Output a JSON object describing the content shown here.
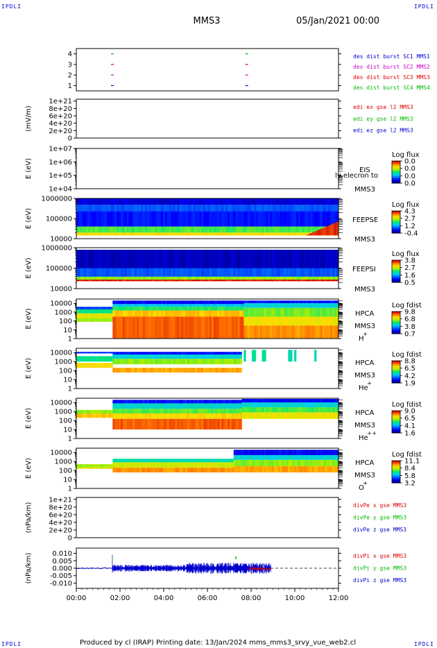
{
  "header": {
    "spacecraft": "MMS3",
    "date": "05/Jan/2021 00:00",
    "corner": "IPDLI"
  },
  "footer": {
    "text": "Produced by cl (IRAP)   Printing date: 13/Jan/2024   mms_mms3_srvy_vue_web2.cl"
  },
  "colors": {
    "red": "#dd0000",
    "green": "#00bb00",
    "blue": "#0000cc",
    "magenta": "#cc00cc",
    "black": "#000000"
  },
  "chart_data": {
    "type": "multi-panel time series",
    "x_tick_labels": [
      "00:00",
      "02:00",
      "04:00",
      "06:00",
      "08:00",
      "10:00",
      "12:00"
    ],
    "x_range_hours": [
      0,
      12
    ],
    "panels": [
      {
        "id": "burst",
        "type": "line",
        "ylabel": "",
        "tick_labels": [
          "4",
          "3",
          "2",
          "1"
        ],
        "tick_values": [
          4,
          3,
          2,
          1
        ],
        "ylim": [
          0.5,
          4.5
        ],
        "legend": [
          {
            "label": "des dist burst SC1 MMS1",
            "color": "#0000cc"
          },
          {
            "label": "des dist burst SC2 MMS2",
            "color": "#cc00cc"
          },
          {
            "label": "des dist burst SC3 MMS3",
            "color": "#dd0000"
          },
          {
            "label": "des dist burst SC4 MMS4",
            "color": "#00bb00"
          }
        ],
        "markers": [
          {
            "t": 1.65,
            "level": 4,
            "color": "#00bb00"
          },
          {
            "t": 1.65,
            "level": 3,
            "color": "#dd0000"
          },
          {
            "t": 1.65,
            "level": 2,
            "color": "#cc00cc"
          },
          {
            "t": 1.65,
            "level": 1,
            "color": "#0000cc"
          },
          {
            "t": 7.8,
            "level": 4,
            "color": "#00bb00"
          },
          {
            "t": 7.8,
            "level": 3,
            "color": "#dd0000"
          },
          {
            "t": 7.8,
            "level": 2,
            "color": "#cc00cc"
          },
          {
            "t": 7.8,
            "level": 1,
            "color": "#0000cc"
          }
        ]
      },
      {
        "id": "edi",
        "type": "line",
        "ylabel": "(mV/m)",
        "tick_labels": [
          "1e+21",
          "8e+20",
          "6e+20",
          "4e+20",
          "2e+20",
          "0"
        ],
        "tick_values": [
          1e+21,
          8e+20,
          6e+20,
          4e+20,
          2e+20,
          0
        ],
        "ylim": [
          0,
          1.05e+21
        ],
        "zero_line": true,
        "legend": [
          {
            "label": "edi ex gse l2 MMS3",
            "color": "#dd0000"
          },
          {
            "label": "edi ey gse l2 MMS3",
            "color": "#00bb00"
          },
          {
            "label": "edi ez gse l2 MMS3",
            "color": "#0000cc"
          }
        ]
      },
      {
        "id": "eis",
        "type": "heatmap",
        "ylabel": "E (eV)",
        "log": true,
        "tick_labels": [
          "1e+07",
          "1e+06",
          "1e+05",
          "1e+04"
        ],
        "tick_values": [
          10000000.0,
          1000000.0,
          100000.0,
          10000.0
        ],
        "ylim": [
          10000.0,
          10000000.0
        ],
        "labels": [
          "EIS",
          "MMS3"
        ],
        "overlay_text": "ly elecron to",
        "colorbar": {
          "title": "Log flux",
          "ticks": [
            "0.0",
            "0.0",
            "0.0",
            "0.0"
          ]
        }
      },
      {
        "id": "feepse",
        "type": "heatmap",
        "ylabel": "E (eV)",
        "log": true,
        "tick_labels": [
          "1000000",
          "100000",
          "10000"
        ],
        "tick_values": [
          1000000.0,
          100000.0,
          10000.0
        ],
        "ylim": [
          10000.0,
          1000000.0
        ],
        "labels": [
          "FEEPSE",
          "MMS3"
        ],
        "colorbar": {
          "title": "Log flux",
          "ticks": [
            "4.3",
            "2.7",
            "1.2",
            "-0.4"
          ]
        }
      },
      {
        "id": "feepsi",
        "type": "heatmap",
        "ylabel": "E (eV)",
        "log": true,
        "tick_labels": [
          "1000000",
          "100000",
          "10000"
        ],
        "tick_values": [
          1000000.0,
          100000.0,
          10000.0
        ],
        "ylim": [
          10000.0,
          1000000.0
        ],
        "labels": [
          "FEEPSI",
          "MMS3"
        ],
        "colorbar": {
          "title": "Log flux",
          "ticks": [
            "3.8",
            "2.7",
            "1.6",
            "0.5"
          ]
        }
      },
      {
        "id": "hpca_h",
        "type": "heatmap",
        "ylabel": "E (eV)",
        "log": true,
        "tick_labels": [
          "10000",
          "1000",
          "100",
          "10",
          "1"
        ],
        "tick_values": [
          10000.0,
          1000.0,
          100.0,
          10,
          1
        ],
        "ylim": [
          1,
          30000.0
        ],
        "labels": [
          "HPCA",
          "MMS3",
          "H",
          "+"
        ],
        "colorbar": {
          "title": "Log fdist",
          "ticks": [
            "9.8",
            "6.8",
            "3.8",
            "0.7"
          ]
        }
      },
      {
        "id": "hpca_he",
        "type": "heatmap",
        "ylabel": "E (eV)",
        "log": true,
        "tick_labels": [
          "10000",
          "1000",
          "100",
          "10",
          "1"
        ],
        "tick_values": [
          10000.0,
          1000.0,
          100.0,
          10,
          1
        ],
        "ylim": [
          1,
          30000.0
        ],
        "labels": [
          "HPCA",
          "MMS3",
          "He",
          "+"
        ],
        "colorbar": {
          "title": "Log fdist",
          "ticks": [
            "8.8",
            "6.5",
            "4.2",
            "1.9"
          ]
        }
      },
      {
        "id": "hpca_hepp",
        "type": "heatmap",
        "ylabel": "E (eV)",
        "log": true,
        "tick_labels": [
          "10000",
          "1000",
          "100",
          "10",
          "1"
        ],
        "tick_values": [
          10000.0,
          1000.0,
          100.0,
          10,
          1
        ],
        "ylim": [
          1,
          30000.0
        ],
        "labels": [
          "HPCA",
          "MMS3",
          "He",
          "++"
        ],
        "colorbar": {
          "title": "Log fdist",
          "ticks": [
            "9.0",
            "6.5",
            "4.1",
            "1.6"
          ]
        }
      },
      {
        "id": "hpca_o",
        "type": "heatmap",
        "ylabel": "E (eV)",
        "log": true,
        "tick_labels": [
          "10000",
          "1000",
          "100",
          "10",
          "1"
        ],
        "tick_values": [
          10000.0,
          1000.0,
          100.0,
          10,
          1
        ],
        "ylim": [
          1,
          30000.0
        ],
        "labels": [
          "HPCA",
          "MMS3",
          "O",
          "+"
        ],
        "colorbar": {
          "title": "Log fdist",
          "ticks": [
            "11.1",
            "8.4",
            "5.8",
            "3.2"
          ]
        }
      },
      {
        "id": "divpe",
        "type": "line",
        "ylabel": "(nPa/km)",
        "tick_labels": [
          "1e+21",
          "8e+20",
          "6e+20",
          "4e+20",
          "2e+20",
          "0"
        ],
        "tick_values": [
          1e+21,
          8e+20,
          6e+20,
          4e+20,
          2e+20,
          0
        ],
        "ylim": [
          0,
          1.05e+21
        ],
        "zero_line": true,
        "legend": [
          {
            "label": "divPe x gse MMS3",
            "color": "#dd0000"
          },
          {
            "label": "divPe y gse MMS3",
            "color": "#00bb00"
          },
          {
            "label": "divPe z gse MMS3",
            "color": "#0000cc"
          }
        ]
      },
      {
        "id": "divpi",
        "type": "line",
        "ylabel": "(nPa/km)",
        "tick_labels": [
          "0.010",
          "0.005",
          "0.000",
          "-0.005",
          "-0.010"
        ],
        "tick_values": [
          0.01,
          0.005,
          0,
          -0.005,
          -0.01
        ],
        "ylim": [
          -0.0135,
          0.0135
        ],
        "zero_line": true,
        "legend": [
          {
            "label": "divPi x gse MMS3",
            "color": "#dd0000"
          },
          {
            "label": "divPi y gse MMS3",
            "color": "#00bb00"
          },
          {
            "label": "divPi z gse MMS3",
            "color": "#0000cc"
          }
        ]
      }
    ]
  }
}
